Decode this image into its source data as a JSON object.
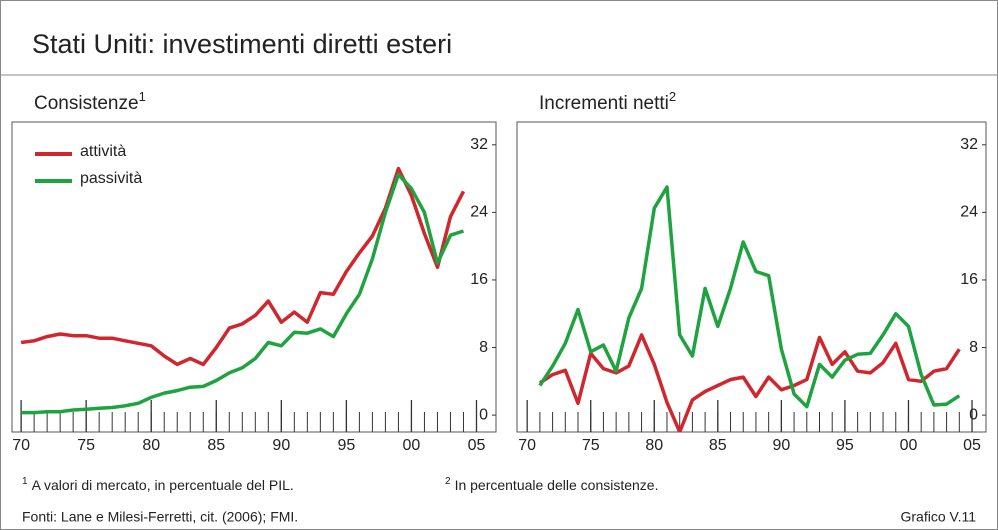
{
  "header": {
    "title": "Stati Uniti: investimenti diretti esteri"
  },
  "chart_data": [
    {
      "type": "line",
      "title": "Consistenze",
      "title_note": "1",
      "x": [
        1970,
        1971,
        1972,
        1973,
        1974,
        1975,
        1976,
        1977,
        1978,
        1979,
        1980,
        1981,
        1982,
        1983,
        1984,
        1985,
        1986,
        1987,
        1988,
        1989,
        1990,
        1991,
        1992,
        1993,
        1994,
        1995,
        1996,
        1997,
        1998,
        1999,
        2000,
        2001,
        2002,
        2003,
        2004
      ],
      "series": [
        {
          "name": "attività",
          "color": "#d0262e",
          "values": [
            8.6,
            8.8,
            9.3,
            9.6,
            9.4,
            9.4,
            9.1,
            9.1,
            8.8,
            8.5,
            8.2,
            7.0,
            6.0,
            6.7,
            6.0,
            8.0,
            10.3,
            10.8,
            11.8,
            13.5,
            11.0,
            12.2,
            11.0,
            14.5,
            14.3,
            17.0,
            19.2,
            21.2,
            24.5,
            29.2,
            26.0,
            21.5,
            17.5,
            23.5,
            26.5
          ]
        },
        {
          "name": "passività",
          "color": "#1fa340",
          "values": [
            0.3,
            0.3,
            0.4,
            0.4,
            0.6,
            0.7,
            0.8,
            0.9,
            1.1,
            1.4,
            2.1,
            2.6,
            2.9,
            3.3,
            3.4,
            4.1,
            5.0,
            5.6,
            6.7,
            8.6,
            8.2,
            9.8,
            9.7,
            10.2,
            9.3,
            12.0,
            14.3,
            18.5,
            24.0,
            28.5,
            26.8,
            24.0,
            18.0,
            21.3,
            21.8
          ]
        }
      ],
      "xlim": [
        1969.3,
        2006.5
      ],
      "ylim": [
        -2,
        34.7
      ],
      "xticks": [
        {
          "value": 1970,
          "label": "70"
        },
        {
          "value": 1975,
          "label": "75"
        },
        {
          "value": 1980,
          "label": "80"
        },
        {
          "value": 1985,
          "label": "85"
        },
        {
          "value": 1990,
          "label": "90"
        },
        {
          "value": 1995,
          "label": "95"
        },
        {
          "value": 2000,
          "label": "00"
        },
        {
          "value": 2005,
          "label": "05"
        }
      ],
      "yticks": [
        0,
        8,
        16,
        24,
        32
      ],
      "legend": "upper left"
    },
    {
      "type": "line",
      "title": "Incrementi netti",
      "title_note": "2",
      "x": [
        1971,
        1972,
        1973,
        1974,
        1975,
        1976,
        1977,
        1978,
        1979,
        1980,
        1981,
        1982,
        1983,
        1984,
        1985,
        1986,
        1987,
        1988,
        1989,
        1990,
        1991,
        1992,
        1993,
        1994,
        1995,
        1996,
        1997,
        1998,
        1999,
        2000,
        2001,
        2002,
        2003,
        2004
      ],
      "series": [
        {
          "name": "attività",
          "color": "#d0262e",
          "values": [
            3.8,
            4.8,
            5.3,
            1.4,
            7.3,
            5.5,
            5.0,
            5.8,
            9.5,
            6.0,
            1.5,
            -2.0,
            1.8,
            2.8,
            3.5,
            4.2,
            4.5,
            2.2,
            4.5,
            3.0,
            3.5,
            4.2,
            9.2,
            6.0,
            7.5,
            5.2,
            5.0,
            6.2,
            8.5,
            4.2,
            4.0,
            5.2,
            5.5,
            7.8
          ]
        },
        {
          "name": "passività",
          "color": "#1fa340",
          "values": [
            3.5,
            5.8,
            8.5,
            12.5,
            7.5,
            8.3,
            5.2,
            11.5,
            15.0,
            24.5,
            27.0,
            9.5,
            7.0,
            15.0,
            10.5,
            15.0,
            20.5,
            17.0,
            16.5,
            7.8,
            2.5,
            1.0,
            6.0,
            4.5,
            6.5,
            7.2,
            7.3,
            9.5,
            12.0,
            10.5,
            4.8,
            1.2,
            1.3,
            2.3
          ]
        }
      ],
      "xlim": [
        1969.2,
        2006.1
      ],
      "ylim": [
        -2,
        34.7
      ],
      "xticks": [
        {
          "value": 1970,
          "label": "70"
        },
        {
          "value": 1975,
          "label": "75"
        },
        {
          "value": 1980,
          "label": "80"
        },
        {
          "value": 1985,
          "label": "85"
        },
        {
          "value": 1990,
          "label": "90"
        },
        {
          "value": 1995,
          "label": "95"
        },
        {
          "value": 2000,
          "label": "00"
        },
        {
          "value": 2005,
          "label": "05"
        }
      ],
      "yticks": [
        0,
        8,
        16,
        24,
        32
      ]
    }
  ],
  "footnotes": [
    {
      "marker": "1",
      "text": "A valori di mercato, in percentuale del PIL."
    },
    {
      "marker": "2",
      "text": "In percentuale delle consistenze."
    }
  ],
  "source": "Fonti: Lane e Milesi-Ferretti, cit. (2006); FMI.",
  "figure_label": "Grafico V.11"
}
